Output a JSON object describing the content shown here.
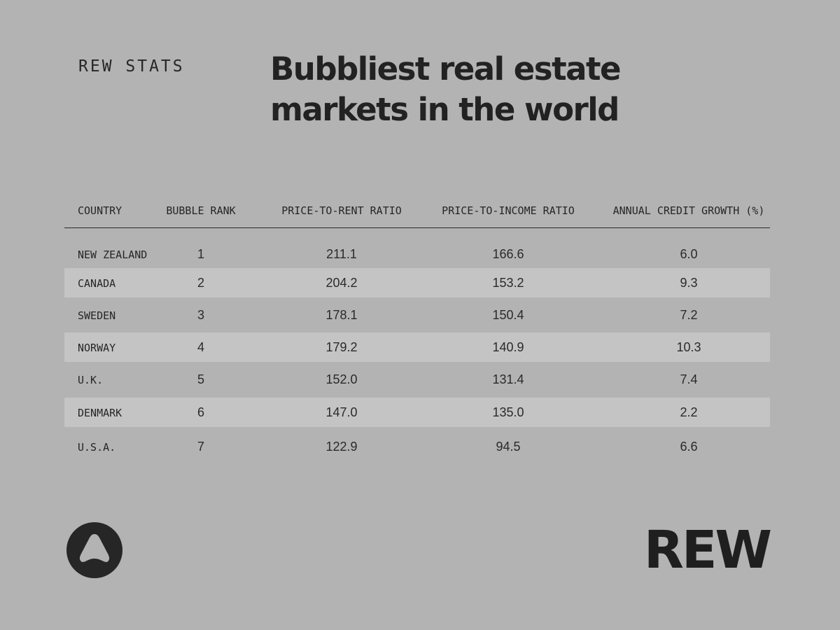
{
  "header": {
    "kicker": "REW STATS",
    "title": "Bubbliest real estate markets in the world"
  },
  "chart_data": {
    "type": "table",
    "title": "Bubbliest real estate markets in the world",
    "columns": [
      "COUNTRY",
      "BUBBLE RANK",
      "PRICE-TO-RENT RATIO",
      "PRICE-TO-INCOME RATIO",
      "ANNUAL CREDIT GROWTH (%)"
    ],
    "rows": [
      [
        "NEW ZEALAND",
        "1",
        "211.1",
        "166.6",
        "6.0"
      ],
      [
        "CANADA",
        "2",
        "204.2",
        "153.2",
        "9.3"
      ],
      [
        "SWEDEN",
        "3",
        "178.1",
        "150.4",
        "7.2"
      ],
      [
        "NORWAY",
        "4",
        "179.2",
        "140.9",
        "10.3"
      ],
      [
        "U.K.",
        "5",
        "152.0",
        "131.4",
        "7.4"
      ],
      [
        "DENMARK",
        "6",
        "147.0",
        "135.0",
        "2.2"
      ],
      [
        "U.S.A.",
        "7",
        "122.9",
        "94.5",
        "6.6"
      ]
    ]
  },
  "footer": {
    "logo_icon": "rounded-triangle-logo-icon",
    "wordmark": "REW"
  },
  "colors": {
    "background": "#b3b3b3",
    "row_shade": "#c4c4c4",
    "ink": "#232323"
  }
}
